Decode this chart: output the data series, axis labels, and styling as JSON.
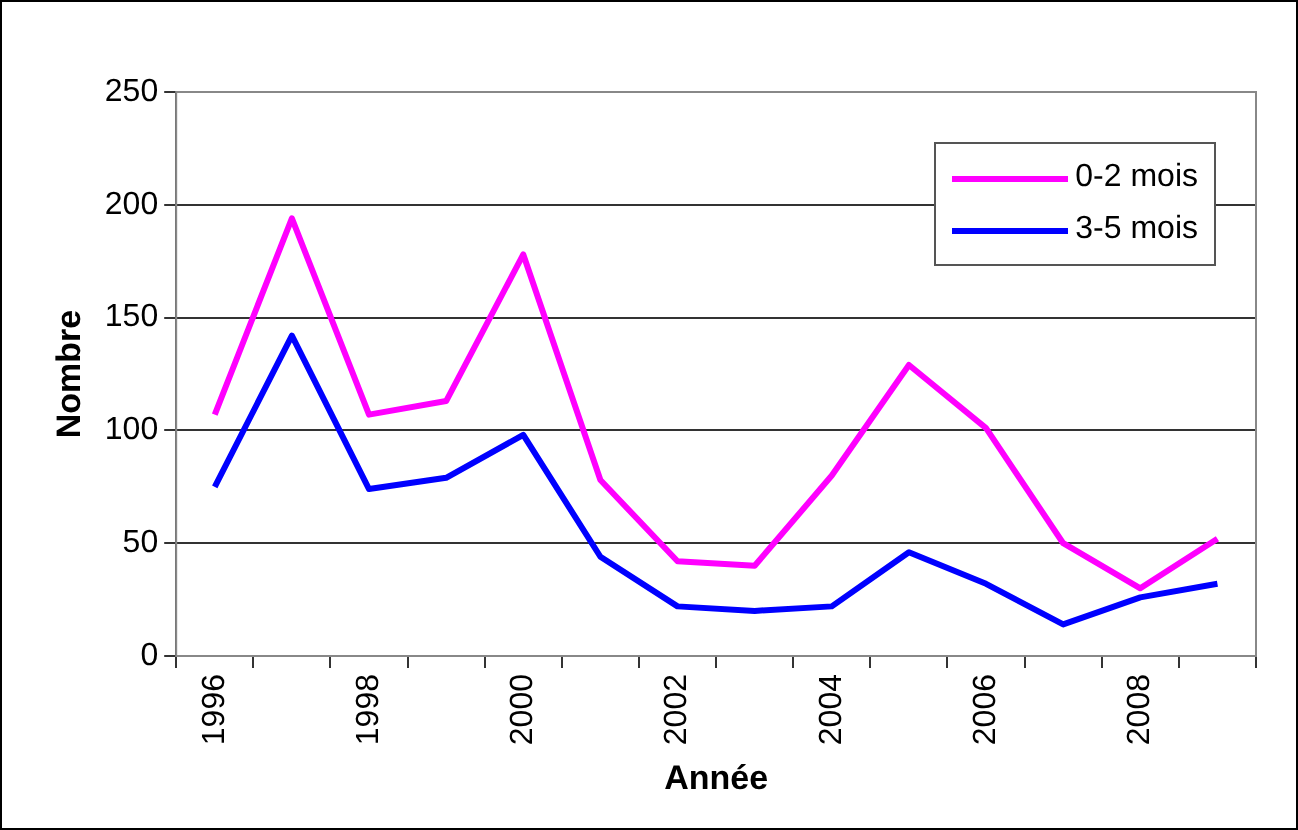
{
  "chart_data": {
    "type": "line",
    "xlabel": "Année",
    "ylabel": "Nombre",
    "categories": [
      "1996",
      null,
      "1998",
      null,
      "2000",
      null,
      "2002",
      null,
      "2004",
      null,
      "2006",
      null,
      "2008",
      null
    ],
    "series": [
      {
        "name": "0-2 mois",
        "color": "#ff00ff",
        "values": [
          107,
          194,
          107,
          113,
          178,
          78,
          42,
          40,
          80,
          129,
          101,
          50,
          30,
          52
        ]
      },
      {
        "name": "3-5 mois",
        "color": "#0000ff",
        "values": [
          75,
          142,
          74,
          79,
          98,
          44,
          22,
          20,
          22,
          46,
          32,
          14,
          26,
          32
        ]
      }
    ],
    "ylim": [
      0,
      250
    ],
    "yticks": [
      0,
      50,
      100,
      150,
      200,
      250
    ],
    "grid": "y",
    "legend": "top right",
    "marker": "none",
    "line_style": "solid"
  }
}
